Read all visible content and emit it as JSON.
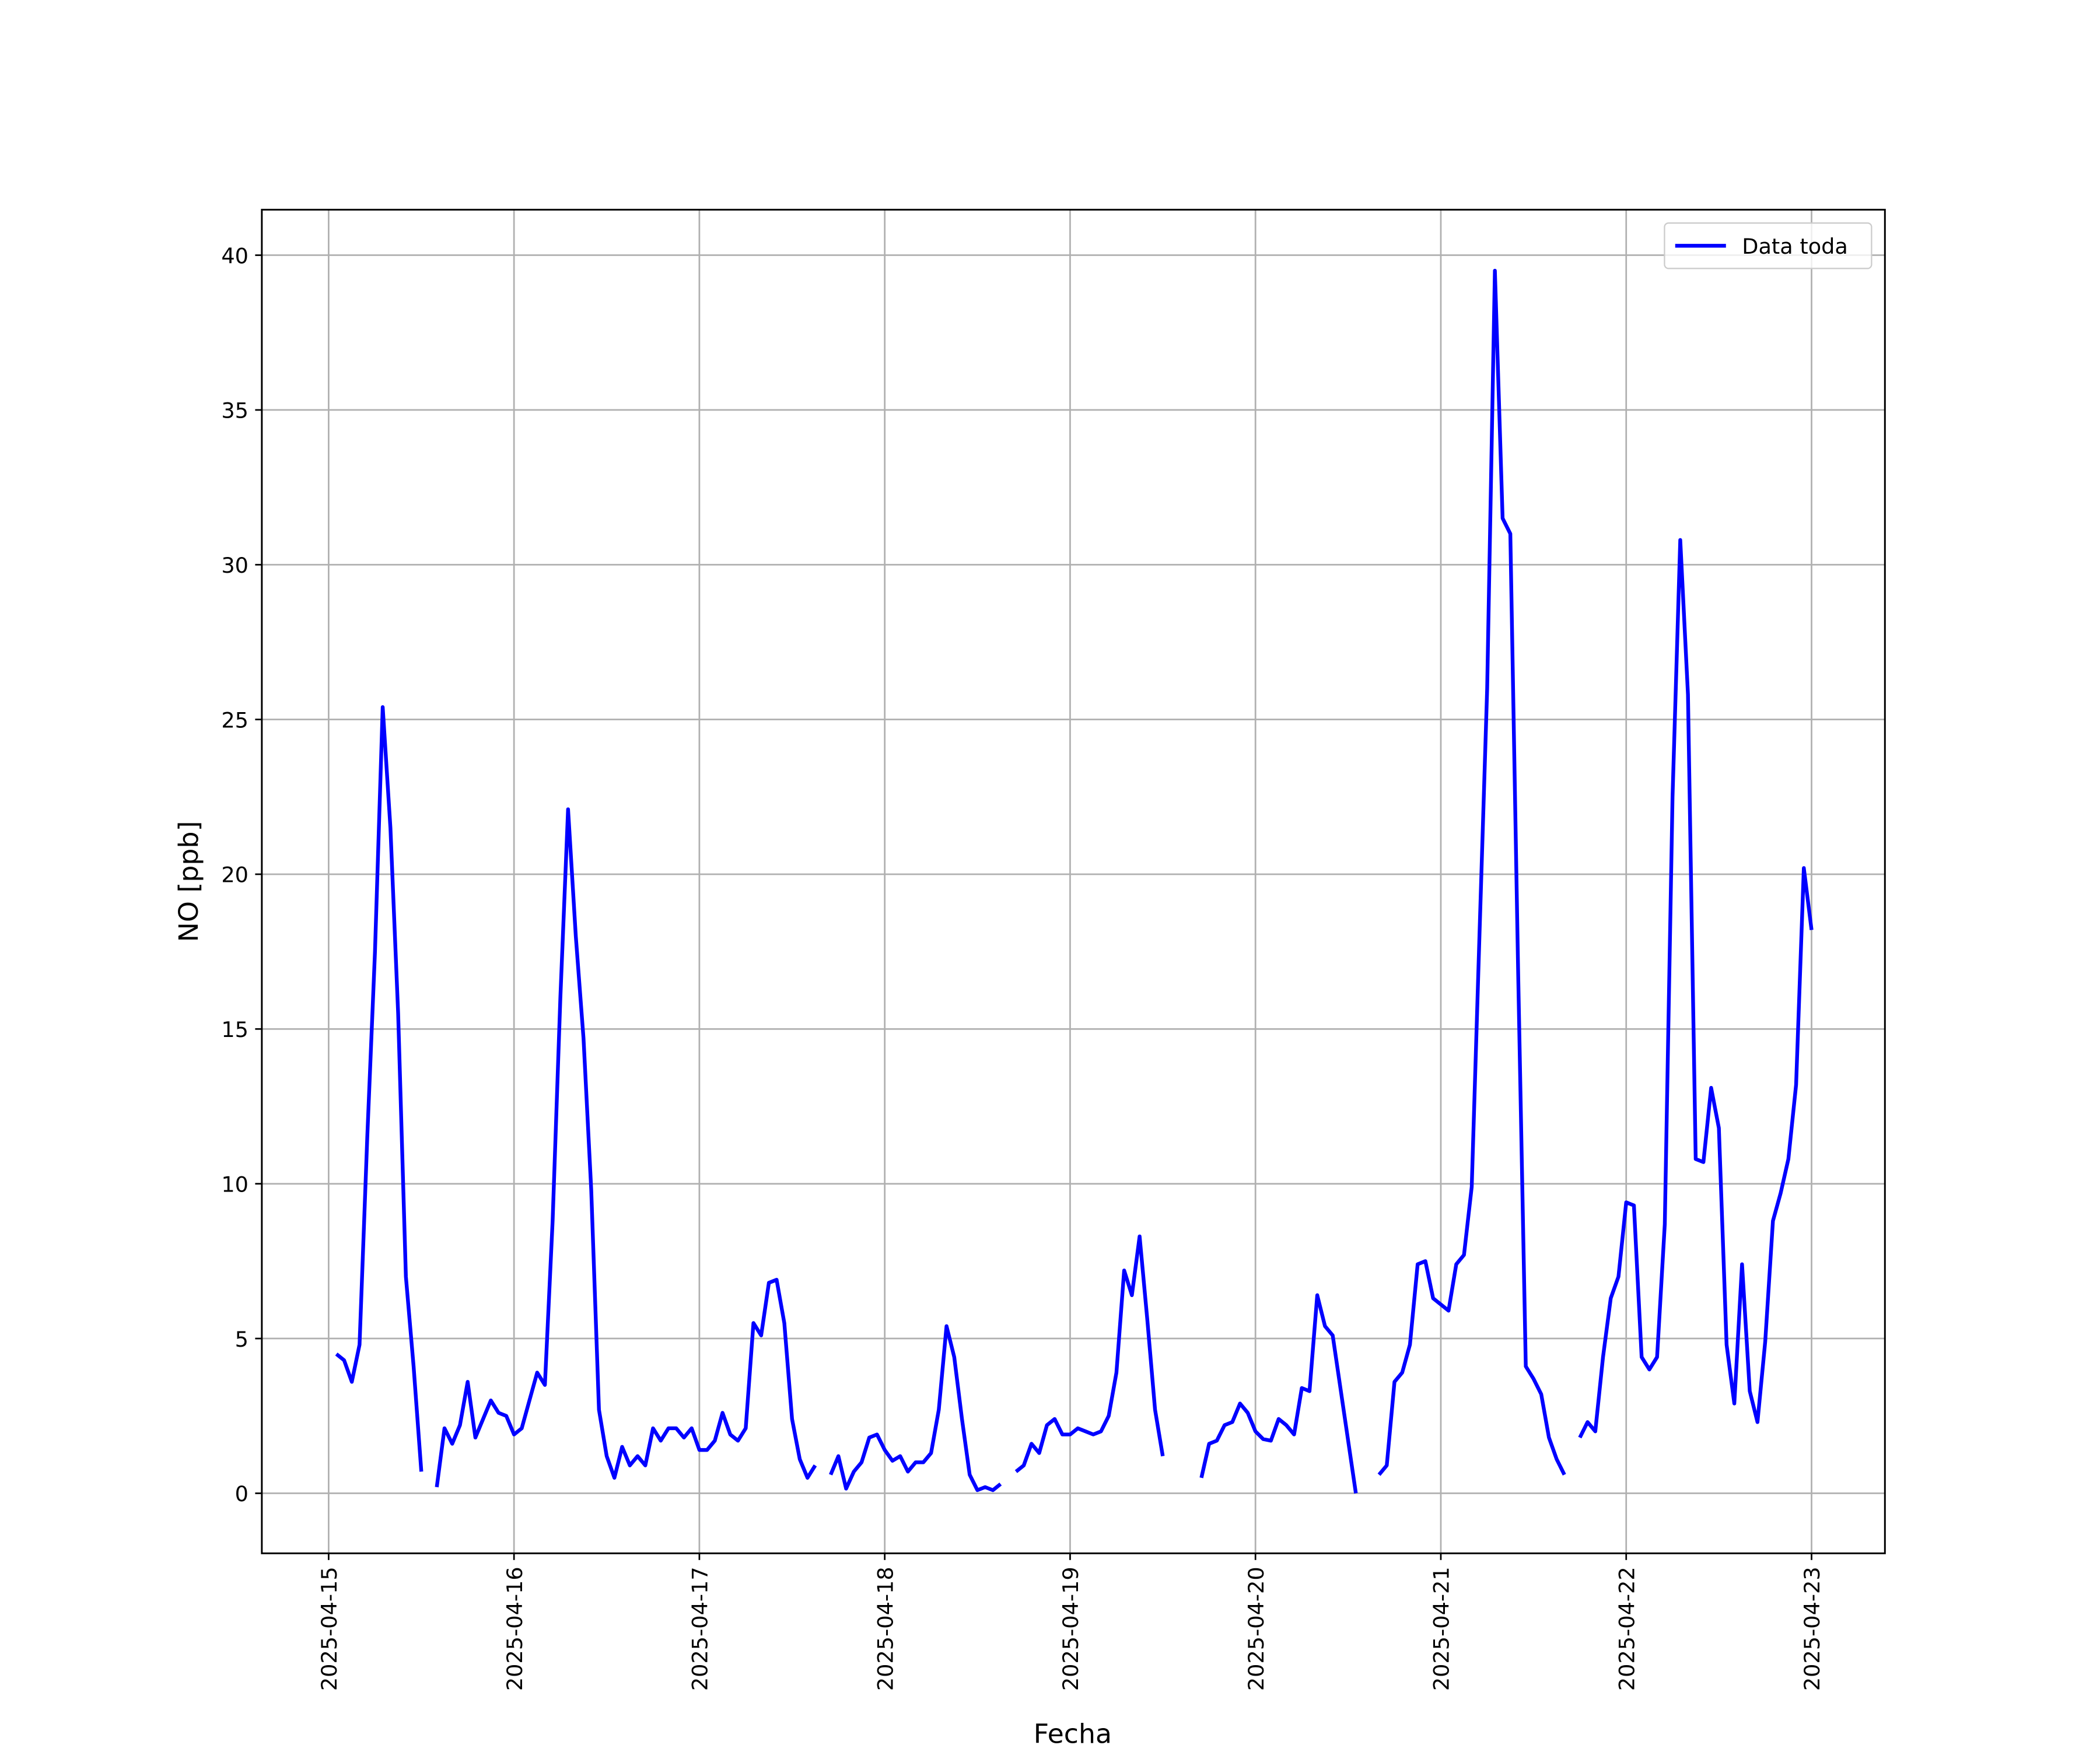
{
  "chart_data": {
    "type": "line",
    "xlabel": "Fecha",
    "ylabel": "NO [ppb]",
    "xlim": [
      "2025-04-14T15:21",
      "2025-04-23T09:30"
    ],
    "xticks": [
      "2025-04-15",
      "2025-04-16",
      "2025-04-17",
      "2025-04-18",
      "2025-04-19",
      "2025-04-20",
      "2025-04-21",
      "2025-04-22",
      "2025-04-23"
    ],
    "ylim": [
      -1.94,
      41.47
    ],
    "yticks": [
      0,
      5,
      10,
      15,
      20,
      25,
      30,
      35,
      40
    ],
    "grid": true,
    "legend": "upper right",
    "x": [
      "2025-04-15T01:00",
      "2025-04-15T02:00",
      "2025-04-15T03:00",
      "2025-04-15T04:00",
      "2025-04-15T05:00",
      "2025-04-15T06:00",
      "2025-04-15T07:00",
      "2025-04-15T08:00",
      "2025-04-15T09:00",
      "2025-04-15T10:00",
      "2025-04-15T11:00",
      "2025-04-15T12:00",
      "2025-04-15T13:00",
      "2025-04-15T14:00",
      "2025-04-15T15:00",
      "2025-04-15T16:00",
      "2025-04-15T17:00",
      "2025-04-15T18:00",
      "2025-04-15T19:00",
      "2025-04-15T20:00",
      "2025-04-15T21:00",
      "2025-04-15T22:00",
      "2025-04-15T23:00",
      "2025-04-16T00:00",
      "2025-04-16T01:00",
      "2025-04-16T02:00",
      "2025-04-16T03:00",
      "2025-04-16T04:00",
      "2025-04-16T05:00",
      "2025-04-16T06:00",
      "2025-04-16T07:00",
      "2025-04-16T08:00",
      "2025-04-16T09:00",
      "2025-04-16T10:00",
      "2025-04-16T11:00",
      "2025-04-16T12:00",
      "2025-04-16T13:00",
      "2025-04-16T14:00",
      "2025-04-16T15:00",
      "2025-04-16T16:00",
      "2025-04-16T17:00",
      "2025-04-16T18:00",
      "2025-04-16T19:00",
      "2025-04-16T20:00",
      "2025-04-16T21:00",
      "2025-04-16T22:00",
      "2025-04-16T23:00",
      "2025-04-17T00:00",
      "2025-04-17T01:00",
      "2025-04-17T02:00",
      "2025-04-17T03:00",
      "2025-04-17T04:00",
      "2025-04-17T05:00",
      "2025-04-17T06:00",
      "2025-04-17T07:00",
      "2025-04-17T08:00",
      "2025-04-17T09:00",
      "2025-04-17T10:00",
      "2025-04-17T11:00",
      "2025-04-17T12:00",
      "2025-04-17T13:00",
      "2025-04-17T14:00",
      "2025-04-17T15:00",
      "2025-04-17T16:00",
      "2025-04-17T17:00",
      "2025-04-17T18:00",
      "2025-04-17T19:00",
      "2025-04-17T20:00",
      "2025-04-17T21:00",
      "2025-04-17T22:00",
      "2025-04-17T23:00",
      "2025-04-18T00:00",
      "2025-04-18T01:00",
      "2025-04-18T02:00",
      "2025-04-18T03:00",
      "2025-04-18T04:00",
      "2025-04-18T05:00",
      "2025-04-18T06:00",
      "2025-04-18T07:00",
      "2025-04-18T08:00",
      "2025-04-18T09:00",
      "2025-04-18T10:00",
      "2025-04-18T11:00",
      "2025-04-18T12:00",
      "2025-04-18T13:00",
      "2025-04-18T14:00",
      "2025-04-18T15:00",
      "2025-04-18T16:00",
      "2025-04-18T17:00",
      "2025-04-18T18:00",
      "2025-04-18T19:00",
      "2025-04-18T20:00",
      "2025-04-18T21:00",
      "2025-04-18T22:00",
      "2025-04-18T23:00",
      "2025-04-19T00:00",
      "2025-04-19T01:00",
      "2025-04-19T02:00",
      "2025-04-19T03:00",
      "2025-04-19T04:00",
      "2025-04-19T05:00",
      "2025-04-19T06:00",
      "2025-04-19T07:00",
      "2025-04-19T08:00",
      "2025-04-19T09:00",
      "2025-04-19T10:00",
      "2025-04-19T11:00",
      "2025-04-19T12:00",
      "2025-04-19T13:00",
      "2025-04-19T14:00",
      "2025-04-19T15:00",
      "2025-04-19T16:00",
      "2025-04-19T17:00",
      "2025-04-19T18:00",
      "2025-04-19T19:00",
      "2025-04-19T20:00",
      "2025-04-19T21:00",
      "2025-04-19T22:00",
      "2025-04-19T23:00",
      "2025-04-20T00:00",
      "2025-04-20T01:00",
      "2025-04-20T02:00",
      "2025-04-20T03:00",
      "2025-04-20T04:00",
      "2025-04-20T05:00",
      "2025-04-20T06:00",
      "2025-04-20T07:00",
      "2025-04-20T08:00",
      "2025-04-20T09:00",
      "2025-04-20T10:00",
      "2025-04-20T11:00",
      "2025-04-20T12:00",
      "2025-04-20T13:00",
      "2025-04-20T14:00",
      "2025-04-20T15:00",
      "2025-04-20T16:00",
      "2025-04-20T17:00",
      "2025-04-20T18:00",
      "2025-04-20T19:00",
      "2025-04-20T20:00",
      "2025-04-20T21:00",
      "2025-04-20T22:00",
      "2025-04-20T23:00",
      "2025-04-21T00:00",
      "2025-04-21T01:00",
      "2025-04-21T02:00",
      "2025-04-21T03:00",
      "2025-04-21T04:00",
      "2025-04-21T05:00",
      "2025-04-21T06:00",
      "2025-04-21T07:00",
      "2025-04-21T08:00",
      "2025-04-21T09:00",
      "2025-04-21T10:00",
      "2025-04-21T11:00",
      "2025-04-21T12:00",
      "2025-04-21T13:00",
      "2025-04-21T14:00",
      "2025-04-21T15:00",
      "2025-04-21T16:00",
      "2025-04-21T17:00",
      "2025-04-21T18:00",
      "2025-04-21T19:00",
      "2025-04-21T20:00",
      "2025-04-21T21:00",
      "2025-04-21T22:00",
      "2025-04-21T23:00",
      "2025-04-22T00:00",
      "2025-04-22T01:00",
      "2025-04-22T02:00",
      "2025-04-22T03:00",
      "2025-04-22T04:00",
      "2025-04-22T05:00",
      "2025-04-22T06:00",
      "2025-04-22T07:00",
      "2025-04-22T08:00",
      "2025-04-22T09:00",
      "2025-04-22T10:00",
      "2025-04-22T11:00",
      "2025-04-22T12:00",
      "2025-04-22T13:00",
      "2025-04-22T14:00",
      "2025-04-22T15:00",
      "2025-04-22T16:00",
      "2025-04-22T17:00",
      "2025-04-22T18:00",
      "2025-04-22T19:00",
      "2025-04-22T20:00",
      "2025-04-22T21:00",
      "2025-04-22T22:00",
      "2025-04-22T23:00",
      "2025-04-23T00:00"
    ],
    "series": [
      {
        "name": "Data toda",
        "color": "#0000ff",
        "values": [
          4.5,
          4.3,
          3.6,
          4.8,
          11.5,
          17.5,
          25.4,
          21.5,
          15.5,
          7.0,
          4.1,
          0.7,
          null,
          0.2,
          2.1,
          1.6,
          2.2,
          3.6,
          1.8,
          2.4,
          3.0,
          2.6,
          2.5,
          1.9,
          2.1,
          3.0,
          3.9,
          3.5,
          8.8,
          16,
          22.1,
          18,
          14.7,
          9.8,
          2.7,
          1.2,
          0.5,
          1.5,
          0.9,
          1.2,
          0.9,
          2.1,
          1.7,
          2.1,
          2.1,
          1.8,
          2.1,
          1.4,
          1.4,
          1.7,
          2.6,
          1.9,
          1.7,
          2.1,
          5.5,
          5.1,
          6.8,
          6.9,
          5.5,
          2.4,
          1.1,
          0.5,
          0.9,
          null,
          0.6,
          1.2,
          0.15,
          0.7,
          1.0,
          1.8,
          1.9,
          1.4,
          1.05,
          1.2,
          0.7,
          1.0,
          1.0,
          1.3,
          2.7,
          5.4,
          4.4,
          2.4,
          0.6,
          0.1,
          0.2,
          0.1,
          0.3,
          null,
          0.7,
          0.9,
          1.6,
          1.3,
          2.2,
          2.4,
          1.9,
          1.9,
          2.1,
          2.0,
          1.9,
          2.0,
          2.5,
          3.9,
          7.2,
          6.4,
          8.3,
          5.6,
          2.7,
          1.2,
          null,
          null,
          null,
          null,
          0.5,
          1.6,
          1.7,
          2.2,
          2.3,
          2.9,
          2.6,
          2.0,
          1.75,
          1.7,
          2.4,
          2.2,
          1.9,
          3.4,
          3.3,
          6.4,
          5.4,
          5.1,
          3.4,
          1.7,
          0.0,
          null,
          null,
          0.6,
          0.9,
          3.6,
          3.9,
          4.8,
          7.4,
          7.5,
          6.3,
          6.1,
          5.9,
          7.4,
          7.7,
          9.9,
          18,
          26,
          39.5,
          31.5,
          31,
          17,
          4.1,
          3.7,
          3.2,
          1.8,
          1.1,
          0.6,
          null,
          1.8,
          2.3,
          2.0,
          4.4,
          6.3,
          7.0,
          9.4,
          9.3,
          4.4,
          4.0,
          4.4,
          8.7,
          22.5,
          30.8,
          25.8,
          10.8,
          10.7,
          13.1,
          11.8,
          4.8,
          2.9,
          7.4,
          3.3,
          2.3,
          4.9,
          8.8,
          9.7,
          10.8,
          13.2,
          20.2,
          18.2
        ]
      }
    ]
  }
}
